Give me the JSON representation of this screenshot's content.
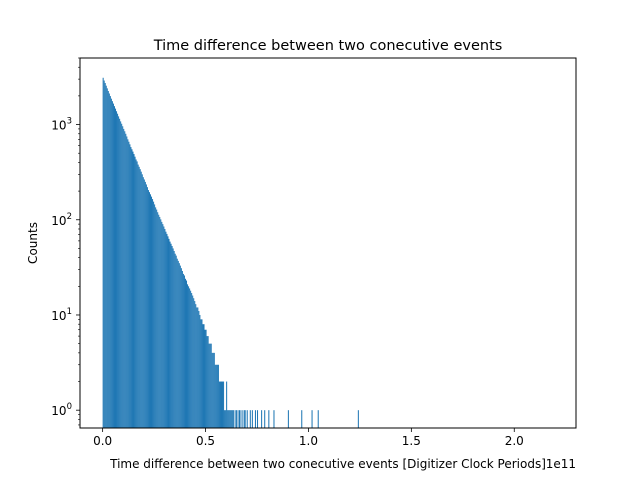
{
  "chart_data": {
    "type": "bar",
    "title": "Time difference between two conecutive events",
    "xlabel": "Time difference between two conecutive events [Digitizer Clock Periods]",
    "ylabel": "Counts",
    "x_offset_label": "1e11",
    "yscale": "log",
    "xlim": [
      -0.11,
      2.3
    ],
    "ylim": [
      0.65,
      5000
    ],
    "grid": false,
    "bar_color": "#1f77b4",
    "x_ticks": [
      {
        "value": 0.0,
        "label": "0.0"
      },
      {
        "value": 0.5,
        "label": "0.5"
      },
      {
        "value": 1.0,
        "label": "1.0"
      },
      {
        "value": 1.5,
        "label": "1.5"
      },
      {
        "value": 2.0,
        "label": "2.0"
      }
    ],
    "y_ticks": [
      {
        "value": 1,
        "base": "10",
        "exp": "0"
      },
      {
        "value": 10,
        "base": "10",
        "exp": "1"
      },
      {
        "value": 100,
        "base": "10",
        "exp": "2"
      },
      {
        "value": 1000,
        "base": "10",
        "exp": "3"
      }
    ],
    "histogram": {
      "bin_start": 0.0,
      "bin_width": 0.005,
      "counts": [
        3100,
        2900,
        2730,
        2560,
        2400,
        2250,
        2120,
        1990,
        1870,
        1760,
        1660,
        1560,
        1470,
        1380,
        1300,
        1220,
        1150,
        1080,
        1020,
        960,
        900,
        850,
        800,
        750,
        700,
        660,
        620,
        580,
        550,
        520,
        490,
        460,
        430,
        410,
        380,
        360,
        340,
        320,
        300,
        280,
        265,
        250,
        235,
        220,
        205,
        195,
        185,
        175,
        165,
        155,
        145,
        135,
        128,
        120,
        113,
        107,
        101,
        95,
        90,
        85,
        80,
        75,
        71,
        67,
        63,
        59,
        56,
        53,
        50,
        47,
        44,
        42,
        39,
        37,
        35,
        33,
        31,
        29,
        27,
        26,
        24,
        23,
        21,
        20,
        19,
        18,
        17,
        16,
        15,
        14,
        13,
        12,
        12,
        11,
        10,
        9,
        9,
        8,
        8,
        7,
        7,
        6,
        6,
        5,
        5,
        5,
        4,
        4,
        4,
        3,
        3,
        3,
        3,
        2,
        2,
        2,
        2,
        2,
        1,
        1,
        2,
        1,
        1,
        1,
        1,
        1,
        1,
        1,
        0,
        1,
        1,
        0,
        1,
        1,
        0,
        1,
        0,
        1,
        1,
        0,
        1,
        0,
        0,
        1,
        0,
        1,
        0,
        0,
        1,
        0,
        1,
        0,
        0,
        0,
        1,
        0,
        0,
        1,
        0,
        0,
        0,
        1,
        0,
        0,
        0,
        0,
        1,
        0,
        0,
        0,
        0,
        0,
        0,
        0,
        0,
        0,
        0,
        0,
        0,
        0,
        1,
        0,
        0,
        0,
        0,
        0,
        0,
        0,
        0,
        0,
        0,
        0,
        0,
        1,
        0,
        0,
        0,
        0,
        0,
        0,
        0,
        0,
        0,
        1,
        0,
        0,
        0,
        0,
        0,
        1,
        0,
        0,
        0,
        0,
        0,
        0,
        0,
        0,
        0,
        0,
        0,
        0,
        0,
        0,
        0,
        0,
        0,
        0,
        0,
        0,
        0,
        0,
        0,
        0,
        0,
        0,
        0,
        0,
        0,
        0,
        0,
        0,
        0,
        0,
        0,
        0,
        0,
        0,
        1
      ]
    }
  }
}
